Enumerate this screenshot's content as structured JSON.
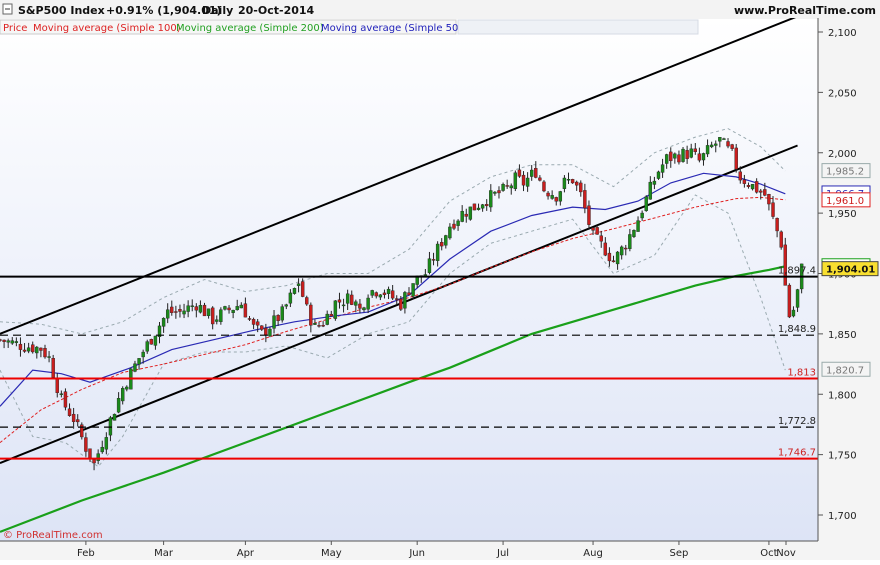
{
  "header": {
    "instrument": "S&P500 Index",
    "change": "+0.91% (1,904.01)",
    "period": "Daily",
    "date": "20-Oct-2014",
    "site": "www.ProRealTime.com"
  },
  "legend": {
    "items": [
      {
        "label": "Price",
        "color": "#dd2222"
      },
      {
        "label": "Moving average (Simple 100)",
        "color": "#dd2222"
      },
      {
        "label": "Moving average (Simple 200)",
        "color": "#22a022"
      },
      {
        "label": "Moving average (Simple 50)",
        "color": "#2222bb"
      }
    ]
  },
  "watermark": "© ProRealTime.com",
  "colors": {
    "up_candle": "#1a8a1a",
    "down_candle": "#c81e1e",
    "wick": "#222222",
    "ma50": "#2a2ab4",
    "ma100": "#e02020",
    "ma200": "#1aa01a",
    "trendline": "#000000",
    "support": "#ee0000",
    "bollinger": "#9aaab0",
    "background_top": "#ffffff",
    "background_bottom": "#dde4f6"
  },
  "chart_data": {
    "type": "candlestick",
    "title": "S&P500 Index",
    "ylim": [
      1680,
      2110
    ],
    "y_ticks": [
      "1,700",
      "1,750",
      "1,800",
      "1,850",
      "1,900",
      "1,950",
      "2,000",
      "2,050",
      "2,100"
    ],
    "x_ticks": [
      "Feb",
      "Mar",
      "Apr",
      "May",
      "Jun",
      "Jul",
      "Aug",
      "Sep",
      "Oct",
      "Nov"
    ],
    "y_scale_hidden_labels_near_price": true,
    "price_labels": [
      {
        "value": 1985.2,
        "text": "1,985.2",
        "style": "gray"
      },
      {
        "value": 1966.7,
        "text": "1,966.7",
        "style": "blue"
      },
      {
        "value": 1961.0,
        "text": "1,961.0",
        "style": "red"
      },
      {
        "value": 1906.4,
        "text": "1,906.4",
        "style": "green"
      },
      {
        "value": 1904.01,
        "text": "1,904.01",
        "style": "price"
      },
      {
        "value": 1820.7,
        "text": "1,820.7",
        "style": "gray"
      }
    ],
    "horizontal_levels": [
      {
        "value": 1897.4,
        "text": "1,897.4",
        "style": "solid-black"
      },
      {
        "value": 1848.9,
        "text": "1,848.9",
        "style": "dashed-black"
      },
      {
        "value": 1813,
        "text": "1,813",
        "style": "solid-red"
      },
      {
        "value": 1772.8,
        "text": "1,772.8",
        "style": "dashed-black"
      },
      {
        "value": 1746.7,
        "text": "1,746.7",
        "style": "solid-red"
      }
    ],
    "trend_channel": {
      "upper": [
        [
          0,
          1850
        ],
        [
          195,
          2113
        ]
      ],
      "lower": [
        [
          0,
          1743
        ],
        [
          195,
          2006
        ]
      ]
    },
    "price_path": [
      [
        0,
        1845
      ],
      [
        6,
        1840
      ],
      [
        10,
        1838
      ],
      [
        12,
        1830
      ],
      [
        15,
        1795
      ],
      [
        18,
        1780
      ],
      [
        21,
        1756
      ],
      [
        23,
        1742
      ],
      [
        26,
        1770
      ],
      [
        30,
        1805
      ],
      [
        34,
        1830
      ],
      [
        38,
        1852
      ],
      [
        41,
        1868
      ],
      [
        44,
        1868
      ],
      [
        48,
        1875
      ],
      [
        52,
        1862
      ],
      [
        56,
        1870
      ],
      [
        59,
        1875
      ],
      [
        62,
        1855
      ],
      [
        64,
        1850
      ],
      [
        67,
        1860
      ],
      [
        69,
        1867
      ],
      [
        71,
        1880
      ],
      [
        73,
        1893
      ],
      [
        75,
        1870
      ],
      [
        77,
        1855
      ],
      [
        79,
        1860
      ],
      [
        82,
        1876
      ],
      [
        86,
        1880
      ],
      [
        88,
        1870
      ],
      [
        90,
        1885
      ],
      [
        93,
        1887
      ],
      [
        96,
        1880
      ],
      [
        98,
        1875
      ],
      [
        101,
        1893
      ],
      [
        104,
        1900
      ],
      [
        107,
        1920
      ],
      [
        110,
        1940
      ],
      [
        113,
        1950
      ],
      [
        116,
        1955
      ],
      [
        118,
        1960
      ],
      [
        121,
        1965
      ],
      [
        124,
        1970
      ],
      [
        126,
        1978
      ],
      [
        128,
        1975
      ],
      [
        131,
        1985
      ],
      [
        133,
        1970
      ],
      [
        136,
        1965
      ],
      [
        138,
        1975
      ],
      [
        140,
        1978
      ],
      [
        142,
        1965
      ],
      [
        145,
        1930
      ],
      [
        148,
        1920
      ],
      [
        150,
        1910
      ],
      [
        153,
        1925
      ],
      [
        156,
        1945
      ],
      [
        159,
        1970
      ],
      [
        161,
        1985
      ],
      [
        163,
        1995
      ],
      [
        166,
        1998
      ],
      [
        169,
        2000
      ],
      [
        171,
        1993
      ],
      [
        174,
        2005
      ],
      [
        176,
        2010
      ],
      [
        179,
        1998
      ],
      [
        181,
        1980
      ],
      [
        183,
        1975
      ],
      [
        185,
        1970
      ],
      [
        187,
        1965
      ],
      [
        189,
        1945
      ],
      [
        191,
        1925
      ],
      [
        192,
        1890
      ],
      [
        193,
        1865
      ],
      [
        194,
        1870
      ],
      [
        195,
        1885
      ],
      [
        196,
        1904
      ]
    ],
    "ma50": [
      [
        0,
        1790
      ],
      [
        8,
        1820
      ],
      [
        15,
        1817
      ],
      [
        22,
        1810
      ],
      [
        32,
        1822
      ],
      [
        42,
        1837
      ],
      [
        52,
        1845
      ],
      [
        62,
        1853
      ],
      [
        72,
        1860
      ],
      [
        82,
        1865
      ],
      [
        90,
        1868
      ],
      [
        100,
        1882
      ],
      [
        110,
        1912
      ],
      [
        120,
        1935
      ],
      [
        130,
        1948
      ],
      [
        140,
        1955
      ],
      [
        148,
        1953
      ],
      [
        156,
        1960
      ],
      [
        164,
        1975
      ],
      [
        172,
        1983
      ],
      [
        180,
        1980
      ],
      [
        186,
        1974
      ],
      [
        192,
        1966
      ]
    ],
    "ma100": [
      [
        0,
        1760
      ],
      [
        10,
        1787
      ],
      [
        20,
        1804
      ],
      [
        30,
        1818
      ],
      [
        40,
        1825
      ],
      [
        50,
        1833
      ],
      [
        60,
        1841
      ],
      [
        70,
        1852
      ],
      [
        80,
        1862
      ],
      [
        90,
        1872
      ],
      [
        100,
        1880
      ],
      [
        110,
        1891
      ],
      [
        120,
        1905
      ],
      [
        130,
        1918
      ],
      [
        140,
        1929
      ],
      [
        150,
        1937
      ],
      [
        160,
        1946
      ],
      [
        170,
        1955
      ],
      [
        180,
        1962
      ],
      [
        186,
        1963
      ],
      [
        192,
        1961
      ]
    ],
    "ma200": [
      [
        0,
        1686
      ],
      [
        20,
        1712
      ],
      [
        40,
        1735
      ],
      [
        60,
        1760
      ],
      [
        80,
        1785
      ],
      [
        100,
        1810
      ],
      [
        110,
        1822
      ],
      [
        120,
        1836
      ],
      [
        130,
        1850
      ],
      [
        140,
        1860
      ],
      [
        150,
        1870
      ],
      [
        160,
        1880
      ],
      [
        170,
        1890
      ],
      [
        180,
        1898
      ],
      [
        188,
        1903
      ],
      [
        192,
        1906
      ]
    ],
    "bollinger_upper": [
      [
        0,
        1860
      ],
      [
        10,
        1858
      ],
      [
        20,
        1850
      ],
      [
        30,
        1860
      ],
      [
        40,
        1880
      ],
      [
        50,
        1895
      ],
      [
        60,
        1885
      ],
      [
        70,
        1890
      ],
      [
        80,
        1900
      ],
      [
        90,
        1900
      ],
      [
        100,
        1920
      ],
      [
        110,
        1960
      ],
      [
        120,
        1980
      ],
      [
        130,
        1990
      ],
      [
        140,
        1990
      ],
      [
        150,
        1972
      ],
      [
        160,
        2000
      ],
      [
        170,
        2013
      ],
      [
        178,
        2020
      ],
      [
        186,
        2005
      ],
      [
        192,
        1985
      ]
    ],
    "bollinger_lower": [
      [
        0,
        1820
      ],
      [
        8,
        1765
      ],
      [
        16,
        1760
      ],
      [
        24,
        1740
      ],
      [
        30,
        1765
      ],
      [
        40,
        1825
      ],
      [
        50,
        1835
      ],
      [
        60,
        1835
      ],
      [
        70,
        1840
      ],
      [
        80,
        1830
      ],
      [
        90,
        1850
      ],
      [
        100,
        1860
      ],
      [
        110,
        1900
      ],
      [
        120,
        1925
      ],
      [
        130,
        1935
      ],
      [
        140,
        1945
      ],
      [
        150,
        1900
      ],
      [
        160,
        1915
      ],
      [
        170,
        1965
      ],
      [
        178,
        1950
      ],
      [
        186,
        1880
      ],
      [
        192,
        1820
      ]
    ]
  }
}
